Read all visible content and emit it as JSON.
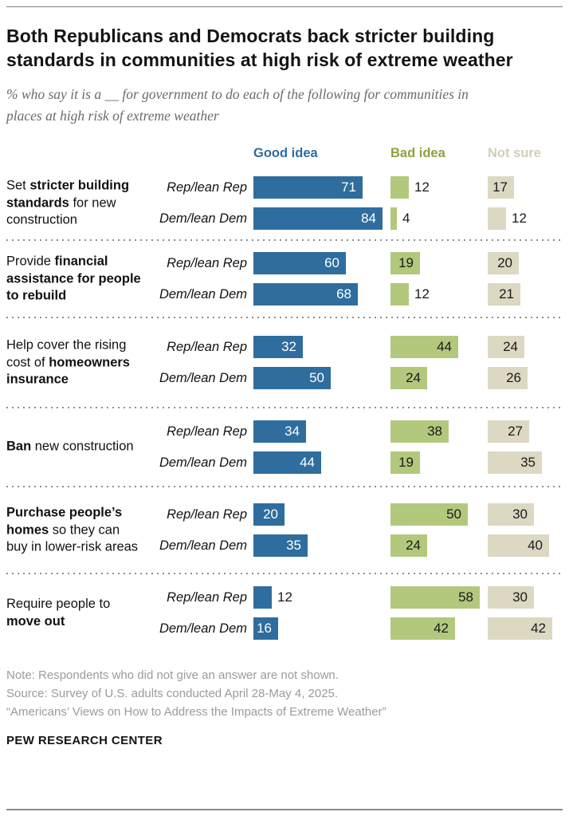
{
  "header": {
    "title": "Both Republicans and Democrats back stricter building standards in communities at high risk of extreme weather",
    "subtitle": "% who say it is a __ for government to do each of the following for communities in places at high risk of extreme weather"
  },
  "chart_data": {
    "type": "bar",
    "unit": "%",
    "orientation": "horizontal",
    "xlim": [
      0,
      100
    ],
    "legend_position": "top",
    "measures": [
      {
        "label": "Good idea",
        "bar_color": "#2e6d9e",
        "header_color": "#2e6d9e",
        "value_text_color": "#ffffff"
      },
      {
        "label": "Bad idea",
        "bar_color": "#b2c87d",
        "header_color": "#8ba33d",
        "value_text_color": "#1a1a1a"
      },
      {
        "label": "Not sure",
        "bar_color": "#dcd8c2",
        "header_color": "#d2ceb6",
        "value_text_color": "#1a1a1a"
      }
    ],
    "row_labels": [
      "Rep/lean Rep",
      "Dem/lean Dem"
    ],
    "sections": [
      {
        "category": [
          {
            "text": "Set ",
            "bold": false
          },
          {
            "text": "stricter building standards",
            "bold": true
          },
          {
            "text": " for new construction",
            "bold": false
          }
        ],
        "rows": [
          {
            "label": "Rep/lean Rep",
            "values": [
              71,
              12,
              17
            ]
          },
          {
            "label": "Dem/lean Dem",
            "values": [
              84,
              4,
              12
            ]
          }
        ]
      },
      {
        "category": [
          {
            "text": "Provide ",
            "bold": false
          },
          {
            "text": "financial assistance for people to rebuild",
            "bold": true
          }
        ],
        "rows": [
          {
            "label": "Rep/lean Rep",
            "values": [
              60,
              19,
              20
            ]
          },
          {
            "label": "Dem/lean Dem",
            "values": [
              68,
              12,
              21
            ]
          }
        ]
      },
      {
        "category": [
          {
            "text": "Help cover the rising cost of ",
            "bold": false
          },
          {
            "text": "homeowners insurance",
            "bold": true
          }
        ],
        "rows": [
          {
            "label": "Rep/lean Rep",
            "values": [
              32,
              44,
              24
            ]
          },
          {
            "label": "Dem/lean Dem",
            "values": [
              50,
              24,
              26
            ]
          }
        ]
      },
      {
        "category": [
          {
            "text": "Ban",
            "bold": true
          },
          {
            "text": " new construction",
            "bold": false
          }
        ],
        "rows": [
          {
            "label": "Rep/lean Rep",
            "values": [
              34,
              38,
              27
            ]
          },
          {
            "label": "Dem/lean Dem",
            "values": [
              44,
              19,
              35
            ]
          }
        ]
      },
      {
        "category": [
          {
            "text": "Purchase people’s homes",
            "bold": true
          },
          {
            "text": " so they can buy in lower-risk areas",
            "bold": false
          }
        ],
        "rows": [
          {
            "label": "Rep/lean Rep",
            "values": [
              20,
              50,
              30
            ]
          },
          {
            "label": "Dem/lean Dem",
            "values": [
              35,
              24,
              40
            ]
          }
        ]
      },
      {
        "category": [
          {
            "text": "Require people to ",
            "bold": false
          },
          {
            "text": "move out",
            "bold": true
          }
        ],
        "rows": [
          {
            "label": "Rep/lean Rep",
            "values": [
              12,
              58,
              30
            ]
          },
          {
            "label": "Dem/lean Dem",
            "values": [
              16,
              42,
              42
            ]
          }
        ]
      }
    ]
  },
  "footer": {
    "note": "Note: Respondents who did not give an answer are not shown.",
    "source": "Source: Survey of U.S. adults conducted April 28-May 4, 2025.",
    "report_title": "“Americans’ Views on How to Address the Impacts of Extreme Weather”",
    "brand": "PEW RESEARCH CENTER"
  }
}
